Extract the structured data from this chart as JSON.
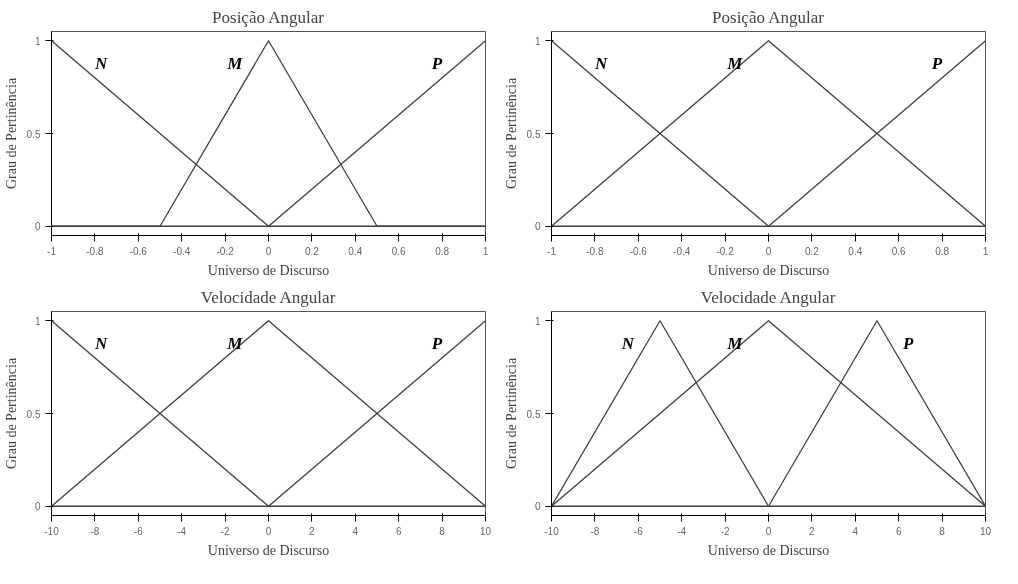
{
  "chart_data": [
    {
      "type": "line",
      "title": "Posição Angular",
      "xlabel": "Universo de Discurso",
      "ylabel": "Grau de Pertinência",
      "xlim": [
        -1,
        1
      ],
      "ylim": [
        -0.05,
        1.05
      ],
      "xticks": [
        -1,
        -0.8,
        -0.6,
        -0.4,
        -0.2,
        0,
        0.2,
        0.4,
        0.6,
        0.8,
        1
      ],
      "yticks": [
        0,
        0.5,
        1
      ],
      "grid": false,
      "legend": false,
      "marker": "none",
      "line_style": "solid",
      "series": [
        {
          "name": "N",
          "color": "#404040",
          "x": [
            -1,
            0,
            1
          ],
          "values": [
            1,
            0,
            0
          ]
        },
        {
          "name": "M",
          "color": "#404040",
          "x": [
            -1,
            -0.5,
            0,
            0.5,
            1
          ],
          "values": [
            0,
            0,
            1,
            0,
            0
          ]
        },
        {
          "name": "P",
          "color": "#404040",
          "x": [
            -1,
            0,
            1
          ],
          "values": [
            0,
            0,
            1
          ]
        }
      ]
    },
    {
      "type": "line",
      "title": "Posição Angular",
      "xlabel": "Universo de Discurso",
      "ylabel": "Grau de Pertinência",
      "xlim": [
        -1,
        1
      ],
      "ylim": [
        -0.05,
        1.05
      ],
      "xticks": [
        -1,
        -0.8,
        -0.6,
        -0.4,
        -0.2,
        0,
        0.2,
        0.4,
        0.6,
        0.8,
        1
      ],
      "yticks": [
        0,
        0.5,
        1
      ],
      "grid": false,
      "legend": false,
      "marker": "none",
      "line_style": "solid",
      "series": [
        {
          "name": "N",
          "color": "#404040",
          "x": [
            -1,
            0,
            1
          ],
          "values": [
            1,
            0,
            0
          ]
        },
        {
          "name": "M",
          "color": "#404040",
          "x": [
            -1,
            0,
            1
          ],
          "values": [
            0,
            1,
            0
          ]
        },
        {
          "name": "P",
          "color": "#404040",
          "x": [
            -1,
            0,
            1
          ],
          "values": [
            0,
            0,
            1
          ]
        }
      ]
    },
    {
      "type": "line",
      "title": "Velocidade Angular",
      "xlabel": "Universo de Discurso",
      "ylabel": "Grau de Pertinência",
      "xlim": [
        -10,
        10
      ],
      "ylim": [
        -0.05,
        1.05
      ],
      "xticks": [
        -10,
        -8,
        -6,
        -4,
        -2,
        0,
        2,
        4,
        6,
        8,
        10
      ],
      "yticks": [
        0,
        0.5,
        1
      ],
      "grid": false,
      "legend": false,
      "marker": "none",
      "line_style": "solid",
      "series": [
        {
          "name": "N",
          "color": "#404040",
          "x": [
            -10,
            0,
            10
          ],
          "values": [
            1,
            0,
            0
          ]
        },
        {
          "name": "M",
          "color": "#404040",
          "x": [
            -10,
            0,
            10
          ],
          "values": [
            0,
            1,
            0
          ]
        },
        {
          "name": "P",
          "color": "#404040",
          "x": [
            -10,
            0,
            10
          ],
          "values": [
            0,
            0,
            1
          ]
        }
      ]
    },
    {
      "type": "line",
      "title": "Velocidade Angular",
      "xlabel": "Universo de Discurso",
      "ylabel": "Grau de Pertinência",
      "xlim": [
        -10,
        10
      ],
      "ylim": [
        -0.05,
        1.05
      ],
      "xticks": [
        -10,
        -8,
        -6,
        -4,
        -2,
        0,
        2,
        4,
        6,
        8,
        10
      ],
      "yticks": [
        0,
        0.5,
        1
      ],
      "grid": false,
      "legend": false,
      "marker": "none",
      "line_style": "solid",
      "series": [
        {
          "name": "N",
          "color": "#404040",
          "x": [
            -10,
            -5,
            0,
            10
          ],
          "values": [
            0,
            1,
            0,
            0
          ]
        },
        {
          "name": "M",
          "color": "#404040",
          "x": [
            -10,
            0,
            10
          ],
          "values": [
            0,
            1,
            0
          ]
        },
        {
          "name": "P",
          "color": "#404040",
          "x": [
            -10,
            0,
            5,
            10
          ],
          "values": [
            0,
            0,
            1,
            0
          ]
        }
      ]
    }
  ]
}
